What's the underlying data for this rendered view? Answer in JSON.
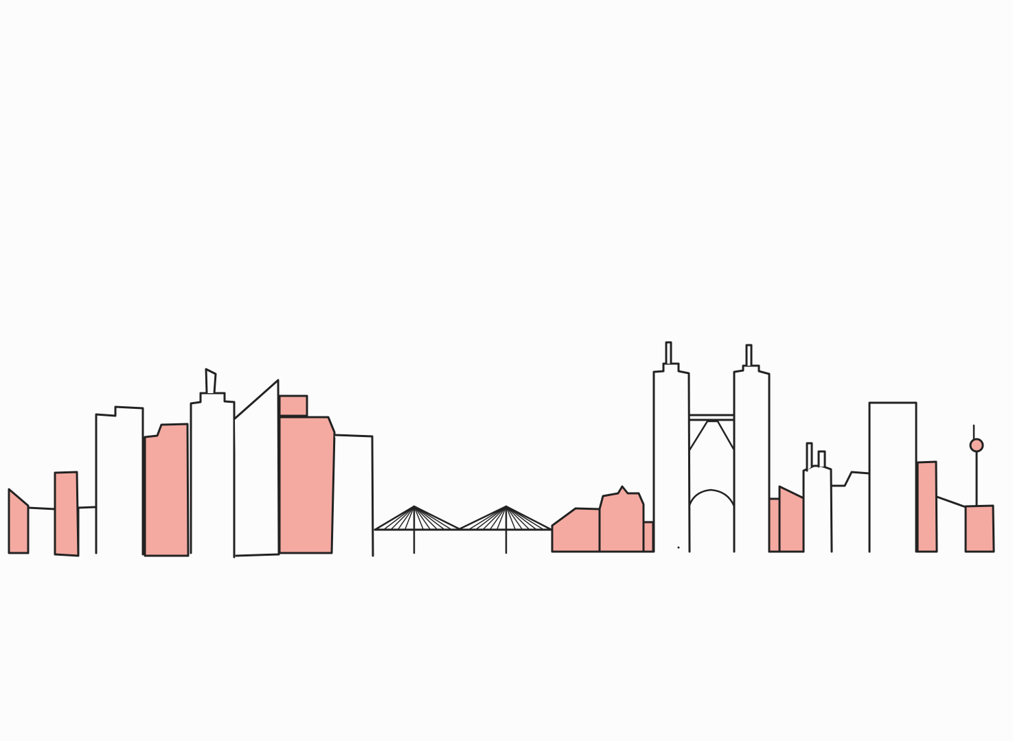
{
  "scene": {
    "description_name": "city-skyline-illustration",
    "colors": {
      "background": "#fdfcfc",
      "fill_accent": "#f4aaa1",
      "fill_plain": "#fdfcfc",
      "stroke": "#222222"
    }
  }
}
